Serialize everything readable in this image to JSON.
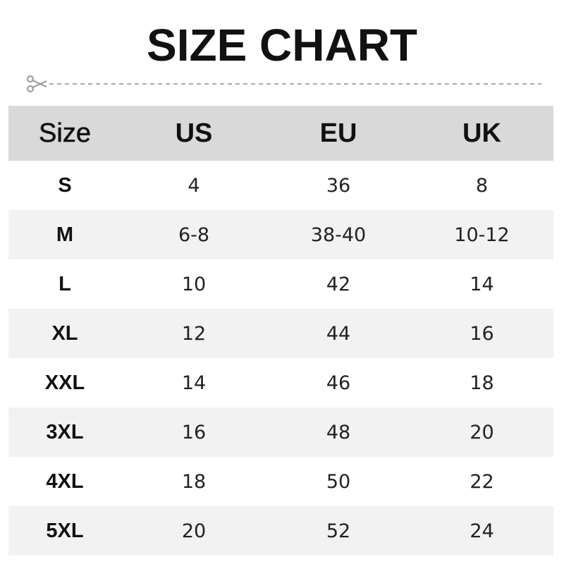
{
  "title": "SIZE CHART",
  "icons": {
    "cut_line": "scissors-icon"
  },
  "colors": {
    "header_bg": "#d9d9d9",
    "alt_row_bg": "#f2f2f2",
    "dash": "#aaaaaa"
  },
  "table": {
    "headers": [
      "Size",
      "US",
      "EU",
      "UK"
    ],
    "rows": [
      [
        "S",
        "4",
        "36",
        "8"
      ],
      [
        "M",
        "6-8",
        "38-40",
        "10-12"
      ],
      [
        "L",
        "10",
        "42",
        "14"
      ],
      [
        "XL",
        "12",
        "44",
        "16"
      ],
      [
        "XXL",
        "14",
        "46",
        "18"
      ],
      [
        "3XL",
        "16",
        "48",
        "20"
      ],
      [
        "4XL",
        "18",
        "50",
        "22"
      ],
      [
        "5XL",
        "20",
        "52",
        "24"
      ]
    ]
  }
}
